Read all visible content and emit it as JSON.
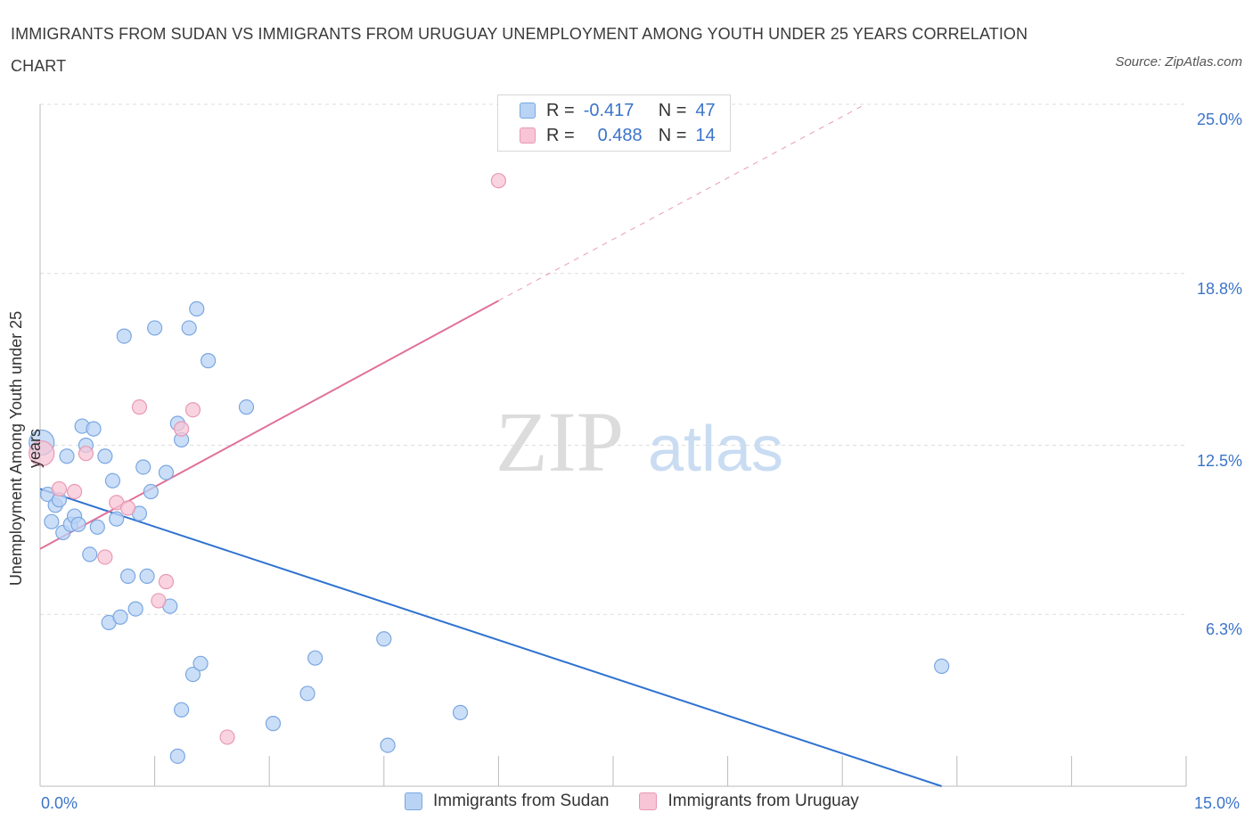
{
  "title": "IMMIGRANTS FROM SUDAN VS IMMIGRANTS FROM URUGUAY UNEMPLOYMENT AMONG YOUTH UNDER 25 YEARS CORRELATION CHART",
  "source": "Source: ZipAtlas.com",
  "watermark": {
    "zip": "ZIP",
    "atlas": "atlas"
  },
  "legend_top": {
    "rows": [
      {
        "r_label": "R =",
        "r_value": "-0.417",
        "n_label": "N =",
        "n_value": "47"
      },
      {
        "r_label": "R =",
        "r_value": "0.488",
        "n_label": "N =",
        "n_value": "14"
      }
    ]
  },
  "colors": {
    "sudan_fill": "#b9d3f5",
    "sudan_stroke": "#7aa7e0",
    "sudan_line": "#2f73d0",
    "uruguay_fill": "#f7c5d5",
    "uruguay_stroke": "#e899b3",
    "uruguay_line": "#e0709a",
    "tick_text": "#3b74c9",
    "grid": "#dddddd"
  },
  "chart_data": {
    "type": "scatter",
    "title": "IMMIGRANTS FROM SUDAN VS IMMIGRANTS FROM URUGUAY UNEMPLOYMENT AMONG YOUTH UNDER 25 YEARS CORRELATION CHART",
    "xlabel": "",
    "ylabel": "Unemployment Among Youth under 25 years",
    "xlim": [
      0,
      15
    ],
    "ylim": [
      0,
      25
    ],
    "x_tick_labels": [
      "0.0%",
      "15.0%"
    ],
    "y_ticks": [
      6.3,
      12.5,
      18.8,
      25.0
    ],
    "y_tick_labels": [
      "6.3%",
      "12.5%",
      "18.8%",
      "25.0%"
    ],
    "grid": true,
    "legend_position": "bottom",
    "series": [
      {
        "name": "Immigrants from Sudan",
        "r": -0.417,
        "n": 47,
        "trend": {
          "x0": 0.0,
          "y0": 10.9,
          "x1": 11.8,
          "y1": 0.0
        },
        "points": [
          [
            0.02,
            12.6
          ],
          [
            0.1,
            10.7
          ],
          [
            0.15,
            9.7
          ],
          [
            0.2,
            10.3
          ],
          [
            0.25,
            10.5
          ],
          [
            0.3,
            9.3
          ],
          [
            0.35,
            12.1
          ],
          [
            0.4,
            9.6
          ],
          [
            0.45,
            9.9
          ],
          [
            0.5,
            9.6
          ],
          [
            0.55,
            13.2
          ],
          [
            0.6,
            12.5
          ],
          [
            0.65,
            8.5
          ],
          [
            0.7,
            13.1
          ],
          [
            0.75,
            9.5
          ],
          [
            0.85,
            12.1
          ],
          [
            0.95,
            11.2
          ],
          [
            1.0,
            9.8
          ],
          [
            1.1,
            16.5
          ],
          [
            1.15,
            7.7
          ],
          [
            1.3,
            10.0
          ],
          [
            1.35,
            11.7
          ],
          [
            1.4,
            7.7
          ],
          [
            1.45,
            10.8
          ],
          [
            1.5,
            16.8
          ],
          [
            1.65,
            11.5
          ],
          [
            1.7,
            6.6
          ],
          [
            1.8,
            13.3
          ],
          [
            1.85,
            12.7
          ],
          [
            1.95,
            16.8
          ],
          [
            2.05,
            17.5
          ],
          [
            0.9,
            6.0
          ],
          [
            1.05,
            6.2
          ],
          [
            1.25,
            6.5
          ],
          [
            2.0,
            4.1
          ],
          [
            2.1,
            4.5
          ],
          [
            2.2,
            15.6
          ],
          [
            2.7,
            13.9
          ],
          [
            3.05,
            2.3
          ],
          [
            3.5,
            3.4
          ],
          [
            3.6,
            4.7
          ],
          [
            4.5,
            5.4
          ],
          [
            1.85,
            2.8
          ],
          [
            1.8,
            1.1
          ],
          [
            4.55,
            1.5
          ],
          [
            5.5,
            2.7
          ],
          [
            11.8,
            4.4
          ]
        ]
      },
      {
        "name": "Immigrants from Uruguay",
        "r": 0.488,
        "n": 14,
        "trend": {
          "x0": 0.0,
          "y0": 8.7,
          "x1": 6.0,
          "y1": 17.8
        },
        "trend_dashed": {
          "x0": 6.0,
          "y0": 17.8,
          "x1": 10.8,
          "y1": 25.0
        },
        "points": [
          [
            0.02,
            12.2
          ],
          [
            0.25,
            10.9
          ],
          [
            0.45,
            10.8
          ],
          [
            0.6,
            12.2
          ],
          [
            0.85,
            8.4
          ],
          [
            1.0,
            10.4
          ],
          [
            1.15,
            10.2
          ],
          [
            1.3,
            13.9
          ],
          [
            1.65,
            7.5
          ],
          [
            1.55,
            6.8
          ],
          [
            1.85,
            13.1
          ],
          [
            2.0,
            13.8
          ],
          [
            2.45,
            1.8
          ],
          [
            6.0,
            22.2
          ]
        ]
      }
    ]
  },
  "bottom_legend": [
    {
      "label": "Immigrants from Sudan"
    },
    {
      "label": "Immigrants from Uruguay"
    }
  ]
}
